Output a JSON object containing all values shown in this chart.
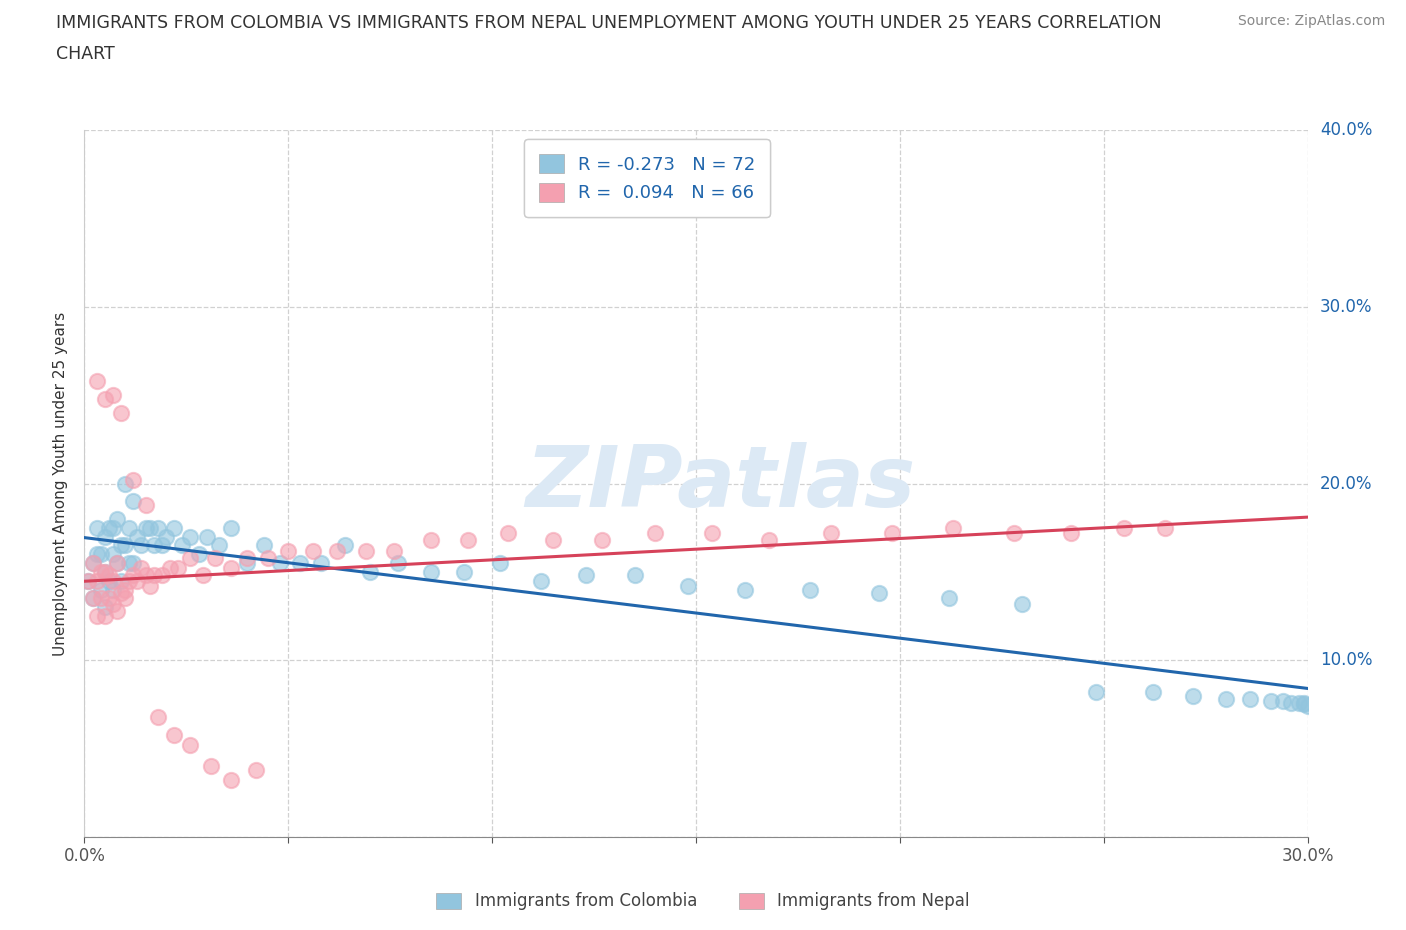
{
  "title_line1": "IMMIGRANTS FROM COLOMBIA VS IMMIGRANTS FROM NEPAL UNEMPLOYMENT AMONG YOUTH UNDER 25 YEARS CORRELATION",
  "title_line2": "CHART",
  "source": "Source: ZipAtlas.com",
  "ylabel": "Unemployment Among Youth under 25 years",
  "legend_colombia": "Immigrants from Colombia",
  "legend_nepal": "Immigrants from Nepal",
  "colombia_R": -0.273,
  "colombia_N": 72,
  "nepal_R": 0.094,
  "nepal_N": 66,
  "colombia_color": "#92c5de",
  "nepal_color": "#f4a0b0",
  "colombia_line_color": "#2166ac",
  "nepal_line_color": "#d6425a",
  "watermark": "ZIPatlas",
  "watermark_color": "#dce9f5",
  "xlim": [
    0.0,
    0.3
  ],
  "ylim": [
    0.0,
    0.4
  ],
  "colombia_x": [
    0.001,
    0.002,
    0.002,
    0.003,
    0.003,
    0.004,
    0.004,
    0.005,
    0.005,
    0.005,
    0.006,
    0.006,
    0.007,
    0.007,
    0.007,
    0.008,
    0.008,
    0.009,
    0.009,
    0.01,
    0.01,
    0.011,
    0.011,
    0.012,
    0.012,
    0.013,
    0.014,
    0.015,
    0.016,
    0.017,
    0.018,
    0.019,
    0.02,
    0.022,
    0.024,
    0.026,
    0.028,
    0.03,
    0.033,
    0.036,
    0.04,
    0.044,
    0.048,
    0.053,
    0.058,
    0.064,
    0.07,
    0.077,
    0.085,
    0.093,
    0.102,
    0.112,
    0.123,
    0.135,
    0.148,
    0.162,
    0.178,
    0.195,
    0.212,
    0.23,
    0.248,
    0.262,
    0.272,
    0.28,
    0.286,
    0.291,
    0.294,
    0.296,
    0.298,
    0.299,
    0.299,
    0.3
  ],
  "colombia_y": [
    0.145,
    0.155,
    0.135,
    0.16,
    0.175,
    0.14,
    0.16,
    0.13,
    0.15,
    0.17,
    0.145,
    0.175,
    0.14,
    0.16,
    0.175,
    0.155,
    0.18,
    0.145,
    0.165,
    0.165,
    0.2,
    0.175,
    0.155,
    0.19,
    0.155,
    0.17,
    0.165,
    0.175,
    0.175,
    0.165,
    0.175,
    0.165,
    0.17,
    0.175,
    0.165,
    0.17,
    0.16,
    0.17,
    0.165,
    0.175,
    0.155,
    0.165,
    0.155,
    0.155,
    0.155,
    0.165,
    0.15,
    0.155,
    0.15,
    0.15,
    0.155,
    0.145,
    0.148,
    0.148,
    0.142,
    0.14,
    0.14,
    0.138,
    0.135,
    0.132,
    0.082,
    0.082,
    0.08,
    0.078,
    0.078,
    0.077,
    0.077,
    0.076,
    0.076,
    0.076,
    0.075,
    0.074
  ],
  "nepal_x": [
    0.001,
    0.002,
    0.002,
    0.003,
    0.003,
    0.004,
    0.004,
    0.005,
    0.005,
    0.006,
    0.006,
    0.007,
    0.007,
    0.008,
    0.008,
    0.009,
    0.01,
    0.01,
    0.011,
    0.012,
    0.013,
    0.014,
    0.015,
    0.016,
    0.017,
    0.019,
    0.021,
    0.023,
    0.026,
    0.029,
    0.032,
    0.036,
    0.04,
    0.045,
    0.05,
    0.056,
    0.062,
    0.069,
    0.076,
    0.085,
    0.094,
    0.104,
    0.115,
    0.127,
    0.14,
    0.154,
    0.168,
    0.183,
    0.198,
    0.213,
    0.228,
    0.242,
    0.255,
    0.265,
    0.003,
    0.005,
    0.007,
    0.009,
    0.012,
    0.015,
    0.018,
    0.022,
    0.026,
    0.031,
    0.036,
    0.042
  ],
  "nepal_y": [
    0.145,
    0.135,
    0.155,
    0.125,
    0.145,
    0.135,
    0.15,
    0.125,
    0.15,
    0.135,
    0.148,
    0.132,
    0.145,
    0.155,
    0.128,
    0.138,
    0.14,
    0.135,
    0.145,
    0.148,
    0.145,
    0.152,
    0.148,
    0.142,
    0.148,
    0.148,
    0.152,
    0.152,
    0.158,
    0.148,
    0.158,
    0.152,
    0.158,
    0.158,
    0.162,
    0.162,
    0.162,
    0.162,
    0.162,
    0.168,
    0.168,
    0.172,
    0.168,
    0.168,
    0.172,
    0.172,
    0.168,
    0.172,
    0.172,
    0.175,
    0.172,
    0.172,
    0.175,
    0.175,
    0.258,
    0.248,
    0.25,
    0.24,
    0.202,
    0.188,
    0.068,
    0.058,
    0.052,
    0.04,
    0.032,
    0.038
  ]
}
